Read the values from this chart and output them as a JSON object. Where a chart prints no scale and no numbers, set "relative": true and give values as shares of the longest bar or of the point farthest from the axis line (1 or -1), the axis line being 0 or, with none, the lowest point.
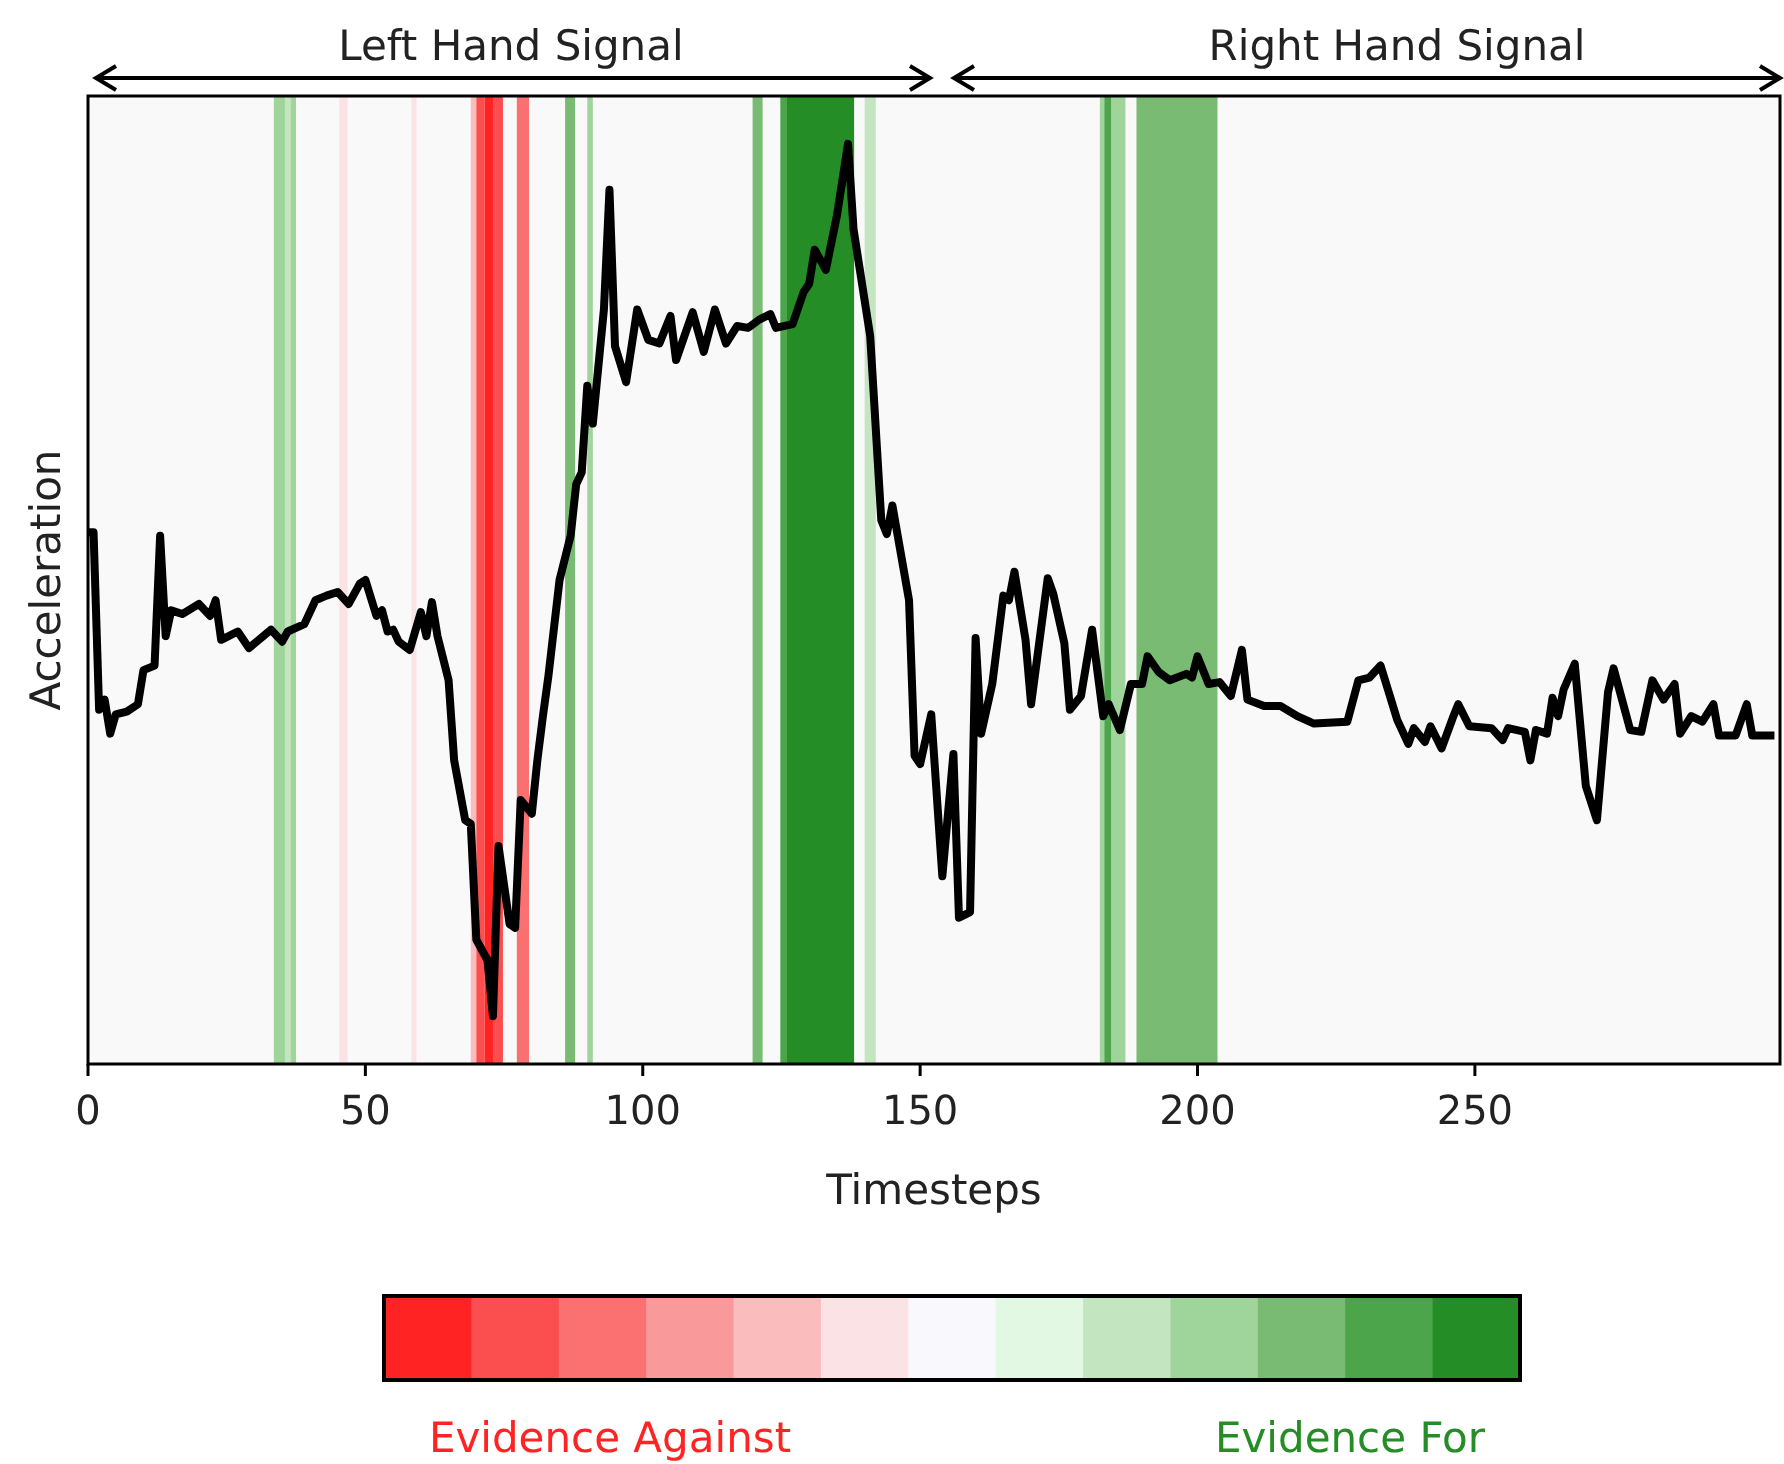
{
  "chart_data": {
    "type": "line",
    "relative": true,
    "xlabel": "Timesteps",
    "ylabel": "Acceleration",
    "xlim": [
      0,
      305
    ],
    "xticks": [
      0,
      50,
      100,
      150,
      200,
      250
    ],
    "grid": false,
    "marker": "none",
    "line_style": "solid",
    "annotations": [
      "Left Hand Signal",
      "Right Hand Signal",
      "Evidence Against",
      "Evidence For"
    ],
    "bands": [
      {
        "axis": "x",
        "from": 33.5,
        "to": 35.5,
        "color": "#9fd49a"
      },
      {
        "axis": "x",
        "from": 35.5,
        "to": 36.5,
        "color": "#c3e5c0"
      },
      {
        "axis": "x",
        "from": 36.5,
        "to": 37.5,
        "color": "#9fd49a"
      },
      {
        "axis": "x",
        "from": 45.3,
        "to": 46.8,
        "color": "#fbe3e5"
      },
      {
        "axis": "x",
        "from": 58.3,
        "to": 59.2,
        "color": "#fbe3e5"
      },
      {
        "axis": "x",
        "from": 69,
        "to": 70,
        "color": "#fbbcbe"
      },
      {
        "axis": "x",
        "from": 70,
        "to": 71.5,
        "color": "#fb4f4f"
      },
      {
        "axis": "x",
        "from": 71.5,
        "to": 73,
        "color": "#ff2323"
      },
      {
        "axis": "x",
        "from": 73,
        "to": 74.8,
        "color": "#fb4f4f"
      },
      {
        "axis": "x",
        "from": 77.3,
        "to": 79.5,
        "color": "#fb7070"
      },
      {
        "axis": "x",
        "from": 86,
        "to": 87.8,
        "color": "#79bb72"
      },
      {
        "axis": "x",
        "from": 90,
        "to": 91,
        "color": "#9fd49a"
      },
      {
        "axis": "x",
        "from": 119.8,
        "to": 121.6,
        "color": "#79bb72"
      },
      {
        "axis": "x",
        "from": 124.8,
        "to": 126,
        "color": "#4ca54a"
      },
      {
        "axis": "x",
        "from": 126,
        "to": 138.1,
        "color": "#258d25"
      },
      {
        "axis": "x",
        "from": 140,
        "to": 142,
        "color": "#c3e5c0"
      },
      {
        "axis": "x",
        "from": 182.4,
        "to": 183.2,
        "color": "#9fd49a"
      },
      {
        "axis": "x",
        "from": 183.2,
        "to": 184.5,
        "color": "#4ca54a"
      },
      {
        "axis": "x",
        "from": 184.5,
        "to": 187,
        "color": "#9fd49a"
      },
      {
        "axis": "x",
        "from": 189,
        "to": 203.6,
        "color": "#79bb72"
      }
    ],
    "series": [
      {
        "color": "#000000",
        "x": [
          0,
          1,
          2,
          3,
          4,
          5,
          7,
          9,
          10,
          12,
          13,
          14,
          15,
          17,
          20,
          22,
          23,
          24,
          27,
          29,
          33,
          35,
          36,
          39,
          41,
          43,
          45,
          47,
          49,
          50,
          52,
          53,
          54,
          55,
          56,
          58,
          60,
          61,
          62,
          63,
          65,
          66,
          68,
          69,
          70,
          72,
          73,
          74,
          76,
          77,
          78,
          80,
          81,
          82,
          83,
          85,
          87,
          88,
          89,
          90,
          91,
          93,
          94,
          95,
          97,
          99,
          101,
          103,
          105,
          106,
          109,
          111,
          113,
          115,
          117,
          119,
          121,
          123,
          124,
          127,
          129,
          130,
          131,
          133,
          135,
          137,
          138,
          141,
          143,
          144,
          145,
          148,
          149,
          150,
          152,
          154,
          156,
          157,
          159,
          160,
          161,
          163,
          165,
          166,
          167,
          169,
          170,
          173,
          174,
          176,
          177,
          179,
          181,
          183,
          184,
          186,
          188,
          190,
          191,
          193,
          195,
          198,
          199,
          200,
          202,
          204,
          206,
          208,
          209,
          212,
          215,
          218,
          221,
          227,
          229,
          231,
          233,
          236,
          238,
          239,
          241,
          242,
          244,
          246,
          247,
          249,
          253,
          255,
          256,
          259,
          260,
          261,
          263,
          264,
          265,
          266,
          268,
          270,
          272,
          274,
          275,
          278,
          280,
          282,
          284,
          286,
          287,
          289,
          291,
          293,
          294,
          297,
          299,
          300,
          304
        ],
        "values": [
          0.578,
          0.578,
          0.385,
          0.396,
          0.359,
          0.38,
          0.383,
          0.391,
          0.428,
          0.433,
          0.574,
          0.465,
          0.493,
          0.489,
          0.5,
          0.487,
          0.504,
          0.461,
          0.47,
          0.452,
          0.472,
          0.459,
          0.47,
          0.478,
          0.504,
          0.509,
          0.513,
          0.5,
          0.522,
          0.526,
          0.487,
          0.493,
          0.47,
          0.472,
          0.459,
          0.45,
          0.491,
          0.465,
          0.502,
          0.465,
          0.417,
          0.33,
          0.265,
          0.261,
          0.135,
          0.113,
          0.052,
          0.237,
          0.152,
          0.148,
          0.287,
          0.272,
          0.33,
          0.378,
          0.422,
          0.526,
          0.574,
          0.63,
          0.643,
          0.737,
          0.696,
          0.82,
          0.95,
          0.78,
          0.741,
          0.82,
          0.787,
          0.783,
          0.813,
          0.765,
          0.817,
          0.774,
          0.82,
          0.783,
          0.802,
          0.8,
          0.809,
          0.815,
          0.8,
          0.804,
          0.839,
          0.848,
          0.885,
          0.863,
          0.922,
          1.0,
          0.907,
          0.791,
          0.591,
          0.576,
          0.607,
          0.504,
          0.335,
          0.326,
          0.38,
          0.204,
          0.337,
          0.159,
          0.165,
          0.463,
          0.359,
          0.413,
          0.509,
          0.504,
          0.535,
          0.461,
          0.391,
          0.528,
          0.511,
          0.457,
          0.385,
          0.4,
          0.472,
          0.378,
          0.391,
          0.363,
          0.413,
          0.413,
          0.443,
          0.426,
          0.417,
          0.424,
          0.42,
          0.443,
          0.413,
          0.415,
          0.4,
          0.45,
          0.396,
          0.389,
          0.389,
          0.378,
          0.37,
          0.372,
          0.417,
          0.42,
          0.433,
          0.374,
          0.348,
          0.365,
          0.35,
          0.367,
          0.343,
          0.376,
          0.391,
          0.367,
          0.365,
          0.352,
          0.365,
          0.361,
          0.33,
          0.363,
          0.359,
          0.398,
          0.378,
          0.407,
          0.435,
          0.302,
          0.265,
          0.404,
          0.43,
          0.363,
          0.361,
          0.417,
          0.396,
          0.413,
          0.359,
          0.378,
          0.372,
          0.391,
          0.357,
          0.357,
          0.391,
          0.357,
          0.357
        ]
      }
    ]
  }
}
